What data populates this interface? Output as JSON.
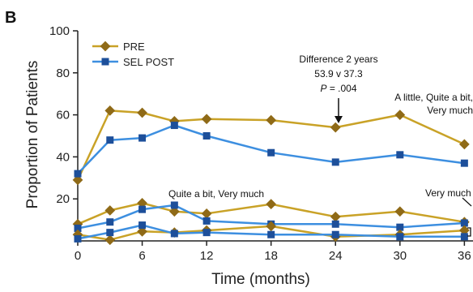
{
  "panel_label": "B",
  "colors": {
    "pre": "#c9a227",
    "pre_marker": "#8f6a17",
    "post": "#3d8fe0",
    "post_marker": "#1d4f9a",
    "axis": "#222222"
  },
  "chart_data": {
    "type": "line",
    "xlabel": "Time (months)",
    "ylabel": "Proportion of Patients",
    "xlim": [
      0,
      36.5
    ],
    "ylim": [
      0,
      100
    ],
    "xticks": [
      0,
      6,
      12,
      18,
      24,
      30,
      36
    ],
    "yticks": [
      20,
      40,
      60,
      80,
      100
    ],
    "legend": {
      "placement": "top-left",
      "entries": [
        "PRE",
        "SEL POST"
      ]
    },
    "series": [
      {
        "name": "PRE",
        "group": "A little, Quite a bit, Very much",
        "x": [
          0,
          3,
          6,
          9,
          12,
          18,
          24,
          30,
          36
        ],
        "y": [
          29,
          62,
          61,
          57,
          58,
          57.5,
          54,
          60,
          46
        ]
      },
      {
        "name": "SEL POST",
        "group": "A little, Quite a bit, Very much",
        "x": [
          0,
          3,
          6,
          9,
          12,
          18,
          24,
          30,
          36
        ],
        "y": [
          32,
          48,
          49,
          55,
          50,
          42,
          37.5,
          41,
          37
        ]
      },
      {
        "name": "PRE",
        "group": "Quite a bit, Very much",
        "x": [
          0,
          3,
          6,
          9,
          12,
          18,
          24,
          30,
          36
        ],
        "y": [
          8,
          14.5,
          18,
          14,
          13,
          17.5,
          11.5,
          14,
          9
        ]
      },
      {
        "name": "SEL POST",
        "group": "Quite a bit, Very much",
        "x": [
          0,
          3,
          6,
          9,
          12,
          18,
          24,
          30,
          36
        ],
        "y": [
          6,
          9,
          15,
          17,
          9.5,
          8,
          8,
          6.5,
          8.5
        ]
      },
      {
        "name": "PRE",
        "group": "Very much",
        "x": [
          0,
          3,
          6,
          9,
          12,
          18,
          24,
          30,
          36
        ],
        "y": [
          3,
          0.5,
          4.5,
          4,
          5,
          7,
          2,
          3,
          5
        ]
      },
      {
        "name": "SEL POST",
        "group": "Very much",
        "x": [
          0,
          3,
          6,
          9,
          12,
          18,
          24,
          30,
          36
        ],
        "y": [
          1,
          4,
          7.5,
          3.5,
          4,
          3,
          3,
          2,
          2
        ]
      }
    ],
    "annotations": {
      "difference_title": "Difference 2 years",
      "difference_values": "53.9 v 37.3",
      "difference_p_label": "P",
      "difference_p_value": " = .004",
      "group_top_line1": "A little, Quite a bit,",
      "group_top_line2": "Very much",
      "group_mid": "Quite a bit, Very much",
      "group_low": "Very much"
    }
  }
}
